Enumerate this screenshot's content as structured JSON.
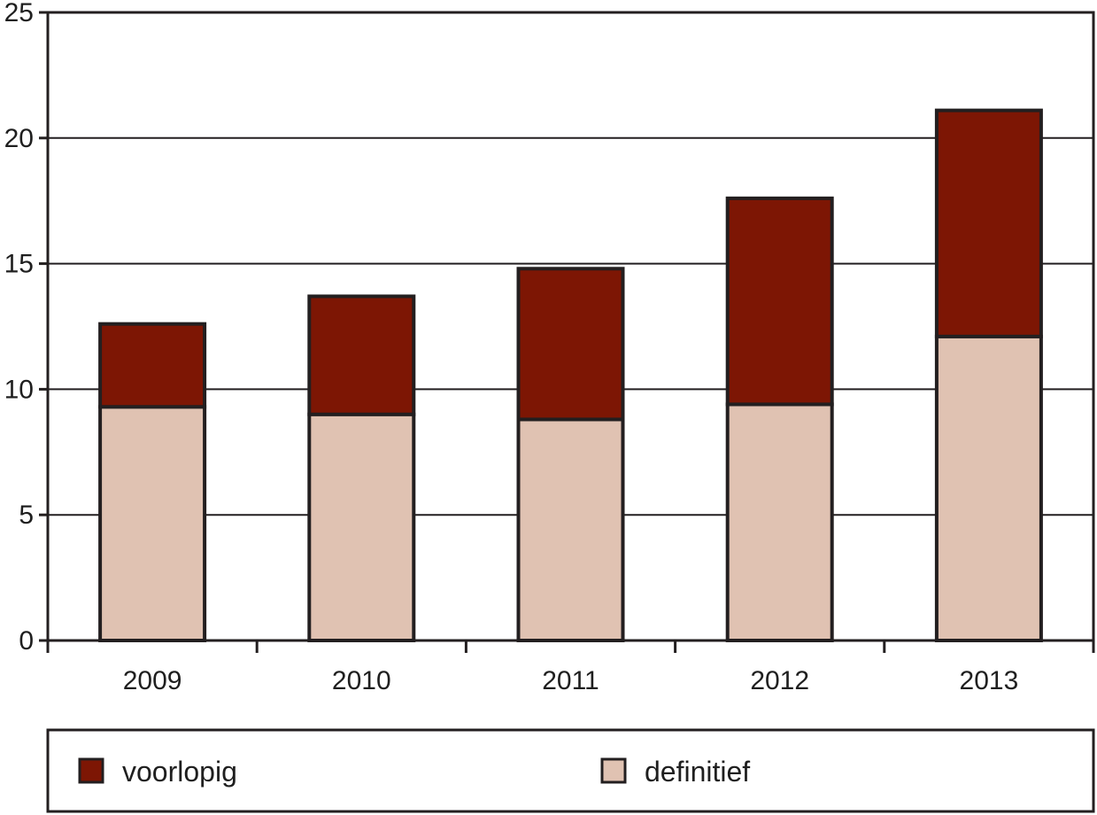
{
  "chart_data": {
    "type": "bar",
    "stacked": true,
    "categories": [
      "2009",
      "2010",
      "2011",
      "2012",
      "2013"
    ],
    "series": [
      {
        "name": "definitief",
        "color": "#e0c2b2",
        "values": [
          9.3,
          9.0,
          8.8,
          9.4,
          12.1
        ]
      },
      {
        "name": "voorlopig",
        "color": "#7d1604",
        "values": [
          3.3,
          4.7,
          6.0,
          8.2,
          9.0
        ]
      }
    ],
    "ylim": [
      0,
      25
    ],
    "yticks": [
      "0",
      "5",
      "10",
      "15",
      "20",
      "25"
    ],
    "grid": true,
    "legend": {
      "placement": "bottom",
      "items": [
        {
          "label": "voorlopig",
          "color": "#7d1604"
        },
        {
          "label": "definitief",
          "color": "#e0c2b2"
        }
      ]
    }
  }
}
